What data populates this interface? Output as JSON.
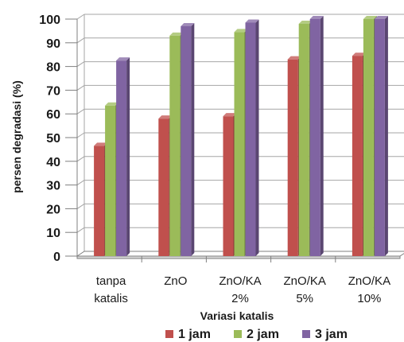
{
  "chart_data": {
    "type": "bar",
    "categories": [
      [
        "tanpa",
        "katalis"
      ],
      [
        "ZnO"
      ],
      [
        "ZnO/KA",
        "2%"
      ],
      [
        "ZnO/KA",
        "5%"
      ],
      [
        "ZnO/KA",
        "10%"
      ]
    ],
    "series": [
      {
        "name": "1 jam",
        "color": "#C0504D",
        "values": [
          46.5,
          58,
          59,
          83,
          84.5
        ]
      },
      {
        "name": "2 jam",
        "color": "#9BBB59",
        "values": [
          63.5,
          93,
          94.5,
          98,
          100
        ]
      },
      {
        "name": "3 jam",
        "color": "#8064A2",
        "values": [
          82.5,
          97,
          98.5,
          100,
          100
        ]
      }
    ],
    "xlabel": "Variasi katalis",
    "ylabel": "persen degradasi (%)",
    "ylim": [
      0,
      100
    ],
    "yticks": [
      0,
      10,
      20,
      30,
      40,
      50,
      60,
      70,
      80,
      90,
      100
    ],
    "grid": true,
    "legend": "bottom",
    "style": "3d-column"
  }
}
